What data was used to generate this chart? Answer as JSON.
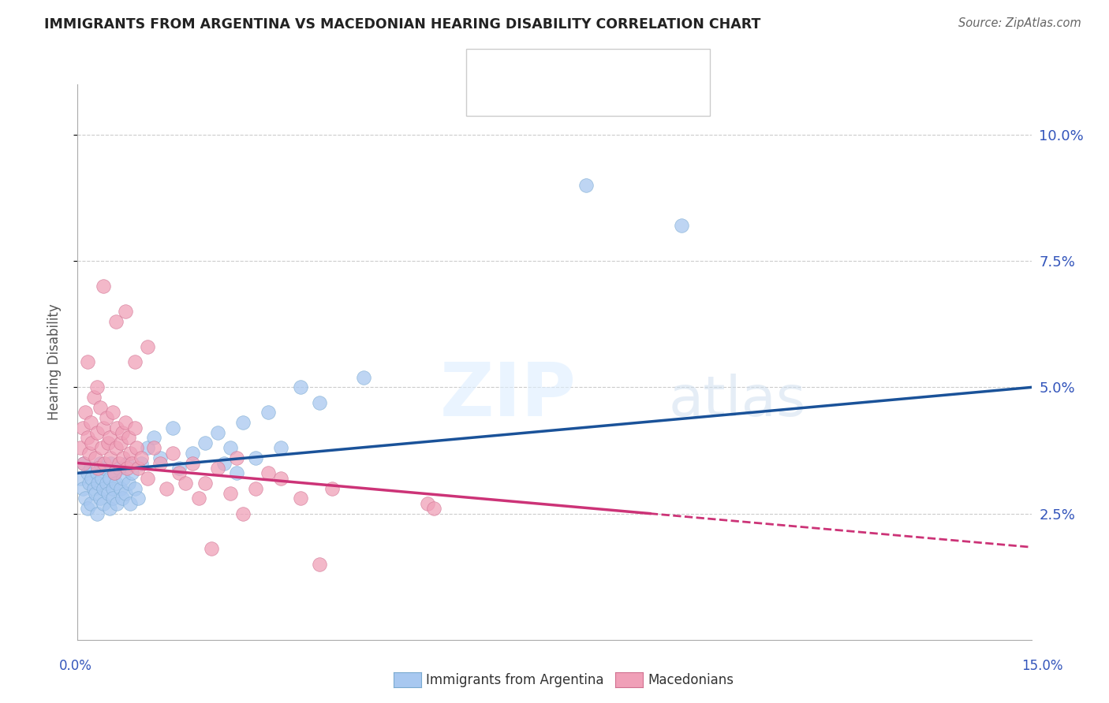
{
  "title": "IMMIGRANTS FROM ARGENTINA VS MACEDONIAN HEARING DISABILITY CORRELATION CHART",
  "source": "Source: ZipAtlas.com",
  "ylabel": "Hearing Disability",
  "xlim": [
    0.0,
    15.0
  ],
  "ylim": [
    0.0,
    11.0
  ],
  "yticks": [
    2.5,
    5.0,
    7.5,
    10.0
  ],
  "ytick_labels": [
    "2.5%",
    "5.0%",
    "7.5%",
    "10.0%"
  ],
  "blue_color": "#A8C8F0",
  "pink_color": "#F0A0B8",
  "trendline_blue": "#1A5299",
  "trendline_pink": "#CC3377",
  "watermark_zip": "ZIP",
  "watermark_atlas": "atlas",
  "blue_scatter_x": [
    0.05,
    0.08,
    0.1,
    0.12,
    0.15,
    0.15,
    0.18,
    0.2,
    0.2,
    0.22,
    0.25,
    0.28,
    0.3,
    0.3,
    0.32,
    0.35,
    0.35,
    0.38,
    0.4,
    0.4,
    0.42,
    0.45,
    0.48,
    0.5,
    0.5,
    0.52,
    0.55,
    0.55,
    0.58,
    0.6,
    0.62,
    0.65,
    0.68,
    0.7,
    0.72,
    0.75,
    0.78,
    0.8,
    0.82,
    0.85,
    0.9,
    0.95,
    1.0,
    1.1,
    1.2,
    1.3,
    1.5,
    1.6,
    1.8,
    2.0,
    2.2,
    2.3,
    2.4,
    2.5,
    2.6,
    2.8,
    3.0,
    3.2,
    3.5,
    3.8,
    4.5,
    8.0,
    9.5
  ],
  "blue_scatter_y": [
    3.2,
    3.0,
    3.5,
    2.8,
    3.3,
    2.6,
    3.1,
    3.4,
    2.7,
    3.2,
    3.0,
    2.9,
    3.3,
    2.5,
    3.1,
    3.5,
    2.8,
    3.2,
    3.0,
    2.7,
    3.4,
    3.1,
    2.9,
    3.2,
    2.6,
    3.5,
    3.0,
    2.8,
    3.3,
    3.1,
    2.7,
    3.4,
    3.0,
    2.8,
    3.2,
    2.9,
    3.5,
    3.1,
    2.7,
    3.3,
    3.0,
    2.8,
    3.5,
    3.8,
    4.0,
    3.6,
    4.2,
    3.4,
    3.7,
    3.9,
    4.1,
    3.5,
    3.8,
    3.3,
    4.3,
    3.6,
    4.5,
    3.8,
    5.0,
    4.7,
    5.2,
    9.0,
    8.2
  ],
  "pink_scatter_x": [
    0.05,
    0.08,
    0.1,
    0.12,
    0.15,
    0.15,
    0.18,
    0.2,
    0.22,
    0.25,
    0.28,
    0.3,
    0.3,
    0.32,
    0.35,
    0.38,
    0.4,
    0.42,
    0.45,
    0.48,
    0.5,
    0.52,
    0.55,
    0.58,
    0.6,
    0.62,
    0.65,
    0.68,
    0.7,
    0.72,
    0.75,
    0.78,
    0.8,
    0.82,
    0.85,
    0.9,
    0.92,
    0.95,
    1.0,
    1.1,
    1.2,
    1.3,
    1.4,
    1.5,
    1.6,
    1.8,
    2.0,
    2.2,
    2.4,
    2.5,
    2.8,
    3.0,
    3.2,
    3.5,
    4.0,
    5.5,
    5.6,
    1.7,
    1.9,
    2.6,
    0.6,
    1.1,
    2.1,
    3.8,
    0.75,
    0.4,
    0.9
  ],
  "pink_scatter_y": [
    3.8,
    4.2,
    3.5,
    4.5,
    4.0,
    5.5,
    3.7,
    4.3,
    3.9,
    4.8,
    3.6,
    4.1,
    5.0,
    3.4,
    4.6,
    3.8,
    4.2,
    3.5,
    4.4,
    3.9,
    4.0,
    3.6,
    4.5,
    3.3,
    3.8,
    4.2,
    3.5,
    3.9,
    4.1,
    3.6,
    4.3,
    3.4,
    4.0,
    3.7,
    3.5,
    4.2,
    3.8,
    3.4,
    3.6,
    3.2,
    3.8,
    3.5,
    3.0,
    3.7,
    3.3,
    3.5,
    3.1,
    3.4,
    2.9,
    3.6,
    3.0,
    3.3,
    3.2,
    2.8,
    3.0,
    2.7,
    2.6,
    3.1,
    2.8,
    2.5,
    6.3,
    5.8,
    1.8,
    1.5,
    6.5,
    7.0,
    5.5
  ],
  "blue_trend_x0": 0.0,
  "blue_trend_x_solid_end": 12.0,
  "pink_trend_x0": 0.0,
  "pink_trend_x_solid_end": 6.0
}
